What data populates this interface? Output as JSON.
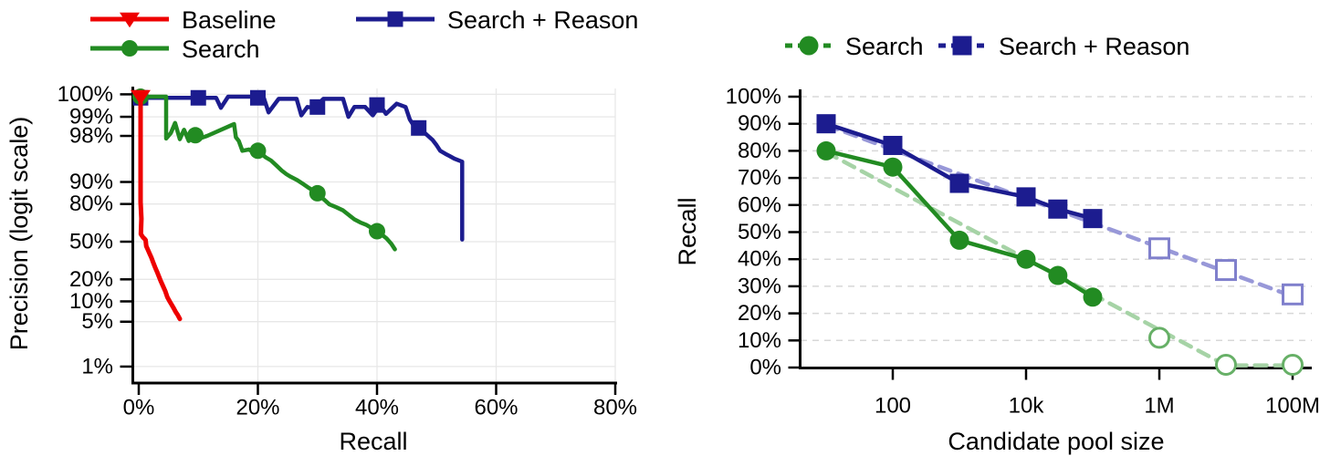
{
  "figure": {
    "background": "#ffffff"
  },
  "chart_data": [
    {
      "id": "precision-recall",
      "type": "line",
      "title": "",
      "xlabel": "Recall",
      "ylabel": "Precision (logit scale)",
      "x_scale": "linear",
      "y_scale": "logit",
      "xlim": [
        0,
        87
      ],
      "ylim": [
        1,
        100
      ],
      "grid": "solid",
      "x_ticks": [
        {
          "v": 0,
          "label": "0%"
        },
        {
          "v": 20,
          "label": "20%"
        },
        {
          "v": 40,
          "label": "40%"
        },
        {
          "v": 60,
          "label": "60%"
        },
        {
          "v": 80,
          "label": "80%"
        }
      ],
      "y_ticks": [
        {
          "v": 100,
          "label": "100%"
        },
        {
          "v": 99,
          "label": "99%"
        },
        {
          "v": 98,
          "label": "98%"
        },
        {
          "v": 90,
          "label": "90%"
        },
        {
          "v": 80,
          "label": "80%"
        },
        {
          "v": 50,
          "label": "50%"
        },
        {
          "v": 20,
          "label": "20%"
        },
        {
          "v": 10,
          "label": "10%"
        },
        {
          "v": 5,
          "label": "5%"
        },
        {
          "v": 1,
          "label": "1%"
        }
      ],
      "legend": [
        {
          "label": "Baseline",
          "slot": 0,
          "color": "#ee0000",
          "marker": "triangle-down",
          "line": "solid"
        },
        {
          "label": "Search",
          "slot": 1,
          "color": "#228b22",
          "marker": "circle",
          "line": "solid"
        },
        {
          "label": "Search + Reason",
          "slot": 2,
          "color": "#1c1c8f",
          "marker": "square",
          "line": "solid"
        }
      ],
      "series": [
        {
          "name": "Search + Reason",
          "color": "#1c1c8f",
          "marker": "square",
          "marker_fill": "filled",
          "line": "solid",
          "width": 4.5,
          "points": [
            [
              0.3,
              99.5
            ],
            [
              10,
              99.5
            ],
            [
              13,
              99.5
            ],
            [
              13.8,
              99.28
            ],
            [
              15,
              99.52
            ],
            [
              19,
              99.52
            ],
            [
              21,
              99.5
            ],
            [
              21.8,
              99.15
            ],
            [
              23.5,
              99.48
            ],
            [
              26.5,
              99.48
            ],
            [
              27.3,
              99.05
            ],
            [
              28.3,
              99.3
            ],
            [
              29.5,
              99.28
            ],
            [
              31,
              99.48
            ],
            [
              34.3,
              99.48
            ],
            [
              35.2,
              99.0
            ],
            [
              36.2,
              99.3
            ],
            [
              38,
              99.3
            ],
            [
              39.3,
              99.05
            ],
            [
              40.5,
              99.35
            ],
            [
              41.5,
              99.1
            ],
            [
              43.3,
              99.38
            ],
            [
              44.8,
              99.3
            ],
            [
              45.5,
              98.9
            ],
            [
              46.2,
              98.6
            ],
            [
              47,
              98.5
            ],
            [
              48.3,
              98.1
            ],
            [
              49.3,
              97.7
            ],
            [
              50,
              97.2
            ],
            [
              50.6,
              96.6
            ],
            [
              51.5,
              96.2
            ],
            [
              52.2,
              95.9
            ],
            [
              53,
              95.5
            ],
            [
              54.3,
              95.0
            ],
            [
              54.3,
              52
            ]
          ],
          "marker_points": [
            [
              0.3,
              99.5
            ],
            [
              10,
              99.5
            ],
            [
              20,
              99.5
            ],
            [
              30,
              99.3
            ],
            [
              40,
              99.35
            ],
            [
              47,
              98.5
            ]
          ]
        },
        {
          "name": "Search",
          "color": "#228b22",
          "marker": "circle",
          "marker_fill": "filled",
          "line": "solid",
          "width": 4.5,
          "points": [
            [
              0.3,
              99.52
            ],
            [
              4.6,
              99.52
            ],
            [
              4.6,
              97.8
            ],
            [
              5.4,
              98.2
            ],
            [
              6.1,
              98.75
            ],
            [
              6.9,
              97.75
            ],
            [
              7.6,
              98.4
            ],
            [
              8.4,
              97.6
            ],
            [
              9.1,
              98.05
            ],
            [
              9.5,
              98.05
            ],
            [
              10.2,
              97.8
            ],
            [
              11.5,
              98.0
            ],
            [
              16,
              98.7
            ],
            [
              16.3,
              97.9
            ],
            [
              16.8,
              97.6
            ],
            [
              17.4,
              96.6
            ],
            [
              18.5,
              96.75
            ],
            [
              19.2,
              96.4
            ],
            [
              20,
              96.6
            ],
            [
              21.3,
              95.7
            ],
            [
              22.2,
              95.2
            ],
            [
              23,
              94.4
            ],
            [
              24,
              93.2
            ],
            [
              24.8,
              92.3
            ],
            [
              25.5,
              91.6
            ],
            [
              26.6,
              90.6
            ],
            [
              27.6,
              89.3
            ],
            [
              28.6,
              87.8
            ],
            [
              30,
              85.6
            ],
            [
              31,
              82.8
            ],
            [
              32,
              79.8
            ],
            [
              33.2,
              78
            ],
            [
              34.3,
              76
            ],
            [
              35.2,
              73
            ],
            [
              36.2,
              69.5
            ],
            [
              37.2,
              67
            ],
            [
              38.2,
              65
            ],
            [
              39.2,
              62
            ],
            [
              40,
              59.5
            ],
            [
              40.8,
              56.5
            ],
            [
              41.6,
              53
            ],
            [
              42.4,
              48
            ],
            [
              43,
              43
            ]
          ],
          "marker_points": [
            [
              0.3,
              99.52
            ],
            [
              9.5,
              98.05
            ],
            [
              20,
              96.6
            ],
            [
              30,
              85.6
            ],
            [
              40,
              59.5
            ]
          ]
        },
        {
          "name": "Baseline",
          "color": "#ee0000",
          "marker": "triangle-down",
          "marker_fill": "filled",
          "line": "solid",
          "width": 5,
          "points": [
            [
              0.3,
              99.52
            ],
            [
              0.3,
              81
            ],
            [
              0.45,
              70
            ],
            [
              0.35,
              57
            ],
            [
              0.7,
              54
            ],
            [
              1.0,
              52.5
            ],
            [
              1.15,
              51.5
            ],
            [
              1.25,
              46
            ],
            [
              1.5,
              43
            ],
            [
              1.8,
              39.5
            ],
            [
              2.1,
              36
            ],
            [
              2.4,
              32
            ],
            [
              2.75,
              28
            ],
            [
              3.05,
              25
            ],
            [
              3.35,
              22
            ],
            [
              3.7,
              19
            ],
            [
              4.05,
              16.5
            ],
            [
              4.45,
              14
            ],
            [
              4.8,
              11.5
            ],
            [
              5.2,
              10
            ],
            [
              5.5,
              9
            ],
            [
              5.85,
              8
            ],
            [
              6.2,
              7
            ],
            [
              6.55,
              6.3
            ],
            [
              6.9,
              5.5
            ]
          ],
          "marker_points": [
            [
              0.3,
              99.52
            ]
          ]
        }
      ]
    },
    {
      "id": "recall-vs-pool",
      "type": "line",
      "title": "",
      "xlabel": "Candidate pool size",
      "ylabel": "Recall",
      "x_scale": "log",
      "y_scale": "linear",
      "xlim": [
        8,
        200000000
      ],
      "ylim": [
        0,
        100
      ],
      "grid": "dashed",
      "x_ticks": [
        {
          "v": 100,
          "label": "100"
        },
        {
          "v": 10000,
          "label": "10k"
        },
        {
          "v": 1000000,
          "label": "1M"
        },
        {
          "v": 100000000,
          "label": "100M"
        }
      ],
      "y_ticks": [
        {
          "v": 100,
          "label": "100%"
        },
        {
          "v": 90,
          "label": "90%"
        },
        {
          "v": 80,
          "label": "80%"
        },
        {
          "v": 70,
          "label": "70%"
        },
        {
          "v": 60,
          "label": "60%"
        },
        {
          "v": 50,
          "label": "50%"
        },
        {
          "v": 40,
          "label": "40%"
        },
        {
          "v": 30,
          "label": "30%"
        },
        {
          "v": 20,
          "label": "20%"
        },
        {
          "v": 10,
          "label": "10%"
        },
        {
          "v": 0,
          "label": "0%"
        }
      ],
      "legend": [
        {
          "label": "Search",
          "slot": 0,
          "color": "#228b22",
          "marker": "circle",
          "line": "dashed"
        },
        {
          "label": "Search + Reason",
          "slot": 1,
          "color": "#1c1c8f",
          "marker": "square",
          "line": "dashed"
        }
      ],
      "series": [
        {
          "name": "Search trend",
          "color": "#a6d3a6",
          "marker": "none",
          "marker_fill": "filled",
          "line": "dashed",
          "width": 4.5,
          "points": [
            [
              10,
              79.5
            ],
            [
              10000000,
              0.8
            ],
            [
              100000000,
              0.8
            ]
          ]
        },
        {
          "name": "Search + Reason trend",
          "color": "#9898d8",
          "marker": "none",
          "marker_fill": "filled",
          "line": "dashed",
          "width": 4.5,
          "points": [
            [
              10,
              89.5
            ],
            [
              100000000,
              26.3
            ]
          ]
        },
        {
          "name": "Search + Reason",
          "color": "#1c1c8f",
          "marker": "square",
          "marker_fill": "filled",
          "line": "solid",
          "width": 4.5,
          "points": [
            [
              10,
              90
            ],
            [
              100,
              82
            ],
            [
              1000,
              68
            ],
            [
              10000,
              63
            ],
            [
              30000,
              58.5
            ],
            [
              100000,
              55
            ]
          ]
        },
        {
          "name": "Search",
          "color": "#228b22",
          "marker": "circle",
          "marker_fill": "filled",
          "line": "solid",
          "width": 4.5,
          "points": [
            [
              10,
              80
            ],
            [
              100,
              74
            ],
            [
              1000,
              47
            ],
            [
              10000,
              40
            ],
            [
              30000,
              34
            ],
            [
              100000,
              26
            ]
          ]
        },
        {
          "name": "Search + Reason extrapolated",
          "color": "#8080cc",
          "marker": "square",
          "marker_fill": "open",
          "line": "none",
          "width": 3,
          "points": [
            [
              1000000,
              44
            ],
            [
              10000000,
              36
            ],
            [
              100000000,
              27
            ]
          ]
        },
        {
          "name": "Search extrapolated",
          "color": "#67b067",
          "marker": "circle",
          "marker_fill": "open",
          "line": "none",
          "width": 3,
          "points": [
            [
              1000000,
              11
            ],
            [
              10000000,
              1
            ],
            [
              100000000,
              1
            ]
          ]
        }
      ]
    }
  ]
}
